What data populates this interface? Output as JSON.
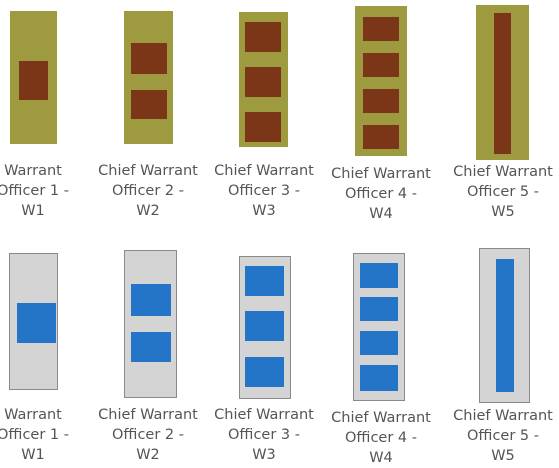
{
  "colors": {
    "gold_background": "#9e9a3f",
    "gold_bar": "#7a3617",
    "silver_background": "#d4d4d4",
    "silver_bar": "#2475c8"
  },
  "rows": [
    {
      "name": "gold-insignia-row",
      "items": [
        {
          "rank": "W1",
          "bars": 1,
          "caption": [
            "Warrant",
            "Officer 1 -",
            "W1"
          ]
        },
        {
          "rank": "W2",
          "bars": 2,
          "caption": [
            "Chief Warrant",
            "Officer 2 -",
            "W2"
          ]
        },
        {
          "rank": "W3",
          "bars": 3,
          "caption": [
            "Chief Warrant",
            "Officer 3 -",
            "W3"
          ]
        },
        {
          "rank": "W4",
          "bars": 4,
          "caption": [
            "Chief Warrant",
            "Officer 4 -",
            "W4"
          ]
        },
        {
          "rank": "W5",
          "bars": "full-length stripe",
          "caption": [
            "Chief Warrant",
            "Officer 5 -",
            "W5"
          ]
        }
      ]
    },
    {
      "name": "silver-insignia-row",
      "items": [
        {
          "rank": "W1",
          "bars": 1,
          "caption": [
            "Warrant",
            "Officer 1 -",
            "W1"
          ]
        },
        {
          "rank": "W2",
          "bars": 2,
          "caption": [
            "Chief Warrant",
            "Officer 2 -",
            "W2"
          ]
        },
        {
          "rank": "W3",
          "bars": 3,
          "caption": [
            "Chief Warrant",
            "Officer 3 -",
            "W3"
          ]
        },
        {
          "rank": "W4",
          "bars": 4,
          "caption": [
            "Chief Warrant",
            "Officer 4 -",
            "W4"
          ]
        },
        {
          "rank": "W5",
          "bars": "full-length stripe",
          "caption": [
            "Chief Warrant",
            "Officer 5 -",
            "W5"
          ]
        }
      ]
    }
  ]
}
